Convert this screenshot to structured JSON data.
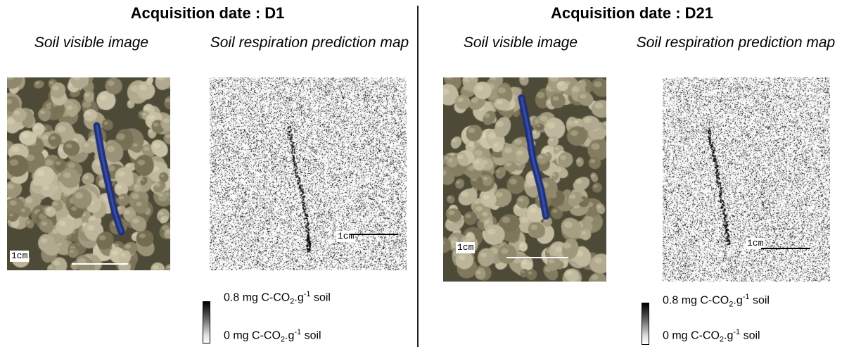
{
  "panels": [
    {
      "title": "Acquisition date : D1",
      "visible_caption": "Soil visible image",
      "map_caption": "Soil respiration prediction map",
      "photo_scale_label": "1cm",
      "map_scale_label": "1cm",
      "legend_high": {
        "pre": "0.8 mg C-CO",
        "sub": "2",
        "mid": ".g",
        "sup": "-1",
        "post": " soil"
      },
      "legend_low": {
        "pre": "0 mg C-CO",
        "sub": "2",
        "mid": ".g",
        "sup": "-1",
        "post": " soil"
      }
    },
    {
      "title": "Acquisition date : D21",
      "visible_caption": "Soil visible image",
      "map_caption": "Soil respiration prediction map",
      "photo_scale_label": "1cm",
      "map_scale_label": "1cm",
      "legend_high": {
        "pre": "0.8 mg C-CO",
        "sub": "2",
        "mid": ".g",
        "sup": "-1",
        "post": " soil"
      },
      "legend_low": {
        "pre": "0 mg C-CO",
        "sub": "2",
        "mid": ".g",
        "sup": "-1",
        "post": " soil"
      }
    }
  ],
  "colors": {
    "soil": "#7b7558",
    "earthworm_gallery": "#1f2f7a",
    "map_dark": "#000000"
  }
}
